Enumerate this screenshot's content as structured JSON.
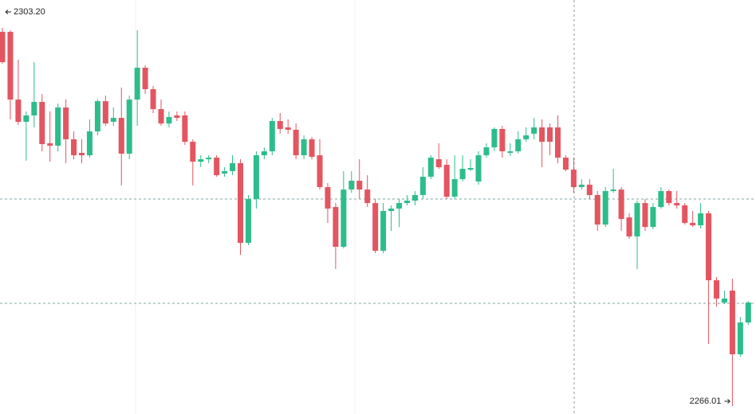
{
  "chart_data": {
    "type": "candlestick",
    "up_color": "#2dbd8a",
    "down_color": "#e35560",
    "annotations": [
      "2303.20",
      "2266.01"
    ],
    "open": [
      2302.81,
      2302.81,
      2296.15,
      2293.96,
      2294.59,
      2295.92,
      2291.85,
      2291.61,
      2295.37,
      2292.24,
      2290.91,
      2290.67,
      2293.02,
      2295.99,
      2293.96,
      2294.35,
      2290.83,
      2296.15,
      2299.28,
      2297.17,
      2295.21,
      2293.8,
      2294.59,
      2294.59,
      2292.0,
      2290.04,
      2290.28,
      2290.44,
      2288.87,
      2289.11,
      2289.89,
      2282.06,
      2286.37,
      2290.67,
      2291.06,
      2294.04,
      2293.41,
      2293.18,
      2290.67,
      2292.24,
      2290.67,
      2287.54,
      2285.58,
      2281.67,
      2287.3,
      2288.17,
      2287.3,
      2285.97,
      2281.28,
      2285.19,
      2285.43,
      2285.97,
      2286.21,
      2286.76,
      2288.56,
      2290.28,
      2289.73,
      2286.6,
      2288.32,
      2289.26,
      2288.09,
      2290.67,
      2291.45,
      2293.26,
      2290.91,
      2291.06,
      2292.24,
      2292.79,
      2293.41,
      2293.41,
      2293.41,
      2290.44,
      2289.26,
      2287.54,
      2287.78,
      2286.76,
      2283.86,
      2287.15,
      2287.3,
      2284.56,
      2282.69,
      2285.97,
      2283.62,
      2285.58,
      2287.15,
      2285.97,
      2285.74,
      2284.02,
      2283.78,
      2284.96,
      2278.38,
      2276.19,
      2277.36,
      2271.1,
      2274.23
    ],
    "high": [
      2303.2,
      2302.96,
      2300.07,
      2294.98,
      2299.83,
      2296.7,
      2294.98,
      2295.76,
      2296.15,
      2293.02,
      2292.24,
      2294.2,
      2296.15,
      2296.54,
      2295.37,
      2297.33,
      2296.54,
      2302.96,
      2299.52,
      2297.48,
      2296.15,
      2294.98,
      2294.98,
      2294.98,
      2292.24,
      2290.67,
      2290.67,
      2290.67,
      2289.5,
      2290.67,
      2290.28,
      2286.76,
      2291.06,
      2291.45,
      2294.35,
      2294.82,
      2294.2,
      2293.8,
      2292.63,
      2292.47,
      2292.24,
      2287.93,
      2285.97,
      2289.11,
      2289.11,
      2290.28,
      2288.71,
      2286.37,
      2285.97,
      2285.74,
      2286.37,
      2286.76,
      2287.15,
      2289.5,
      2290.67,
      2291.85,
      2290.28,
      2290.67,
      2290.67,
      2290.28,
      2291.06,
      2291.85,
      2293.41,
      2293.57,
      2291.85,
      2293.02,
      2293.41,
      2294.35,
      2294.2,
      2293.8,
      2294.59,
      2290.67,
      2290.44,
      2288.32,
      2288.32,
      2287.15,
      2287.54,
      2289.34,
      2287.54,
      2284.96,
      2286.21,
      2286.37,
      2285.97,
      2287.54,
      2287.3,
      2287.15,
      2285.97,
      2285.19,
      2285.97,
      2285.19,
      2278.69,
      2277.36,
      2278.53,
      2274.78,
      2276.34
    ],
    "low": [
      2299.68,
      2294.2,
      2293.65,
      2290.12,
      2293.41,
      2291.06,
      2290.04,
      2291.06,
      2289.89,
      2290.28,
      2289.89,
      2290.44,
      2292.63,
      2293.57,
      2293.57,
      2287.7,
      2290.28,
      2293.57,
      2296.7,
      2294.82,
      2293.57,
      2293.41,
      2294.04,
      2291.69,
      2287.7,
      2289.5,
      2289.89,
      2288.56,
      2288.56,
      2288.71,
      2280.88,
      2281.82,
      2285.43,
      2290.28,
      2290.67,
      2292.79,
      2292.79,
      2290.28,
      2290.28,
      2290.28,
      2287.3,
      2284.02,
      2279.49,
      2281.51,
      2286.99,
      2286.37,
      2285.58,
      2281.04,
      2281.04,
      2283.23,
      2283.62,
      2285.74,
      2285.74,
      2286.37,
      2288.32,
      2289.34,
      2286.37,
      2286.37,
      2288.09,
      2289.11,
      2287.78,
      2290.44,
      2291.06,
      2290.44,
      2290.59,
      2290.83,
      2292.0,
      2292.24,
      2289.5,
      2290.67,
      2289.89,
      2289.11,
      2286.99,
      2287.3,
      2286.37,
      2283.23,
      2283.62,
      2286.99,
      2283.23,
      2282.45,
      2279.49,
      2283.23,
      2283.39,
      2285.43,
      2285.74,
      2285.43,
      2283.86,
      2283.62,
      2283.47,
      2272.12,
      2275.79,
      2276.03,
      2266.01,
      2270.86,
      2273.99
    ],
    "close": [
      2299.83,
      2296.15,
      2293.96,
      2294.59,
      2295.92,
      2291.77,
      2291.61,
      2295.37,
      2292.24,
      2290.67,
      2290.67,
      2293.02,
      2295.99,
      2293.8,
      2294.35,
      2290.83,
      2296.15,
      2299.28,
      2297.17,
      2295.21,
      2293.8,
      2294.43,
      2294.35,
      2292.0,
      2290.04,
      2290.28,
      2290.44,
      2288.71,
      2289.11,
      2289.89,
      2282.06,
      2286.37,
      2290.67,
      2291.06,
      2294.04,
      2293.26,
      2293.18,
      2290.67,
      2292.24,
      2290.52,
      2287.54,
      2285.43,
      2281.67,
      2287.3,
      2288.17,
      2287.3,
      2285.97,
      2281.28,
      2285.19,
      2285.43,
      2285.97,
      2286.21,
      2286.76,
      2288.56,
      2290.44,
      2289.5,
      2286.6,
      2288.32,
      2289.34,
      2289.42,
      2290.67,
      2291.45,
      2293.26,
      2291.06,
      2291.06,
      2292.24,
      2292.63,
      2293.41,
      2292.0,
      2292.0,
      2290.44,
      2289.26,
      2287.54,
      2287.78,
      2286.76,
      2283.86,
      2287.15,
      2287.3,
      2284.41,
      2282.69,
      2285.97,
      2283.62,
      2285.58,
      2287.15,
      2285.97,
      2285.74,
      2284.02,
      2283.78,
      2284.96,
      2278.38,
      2276.58,
      2276.58,
      2271.1,
      2274.23,
      2276.19
    ]
  }
}
